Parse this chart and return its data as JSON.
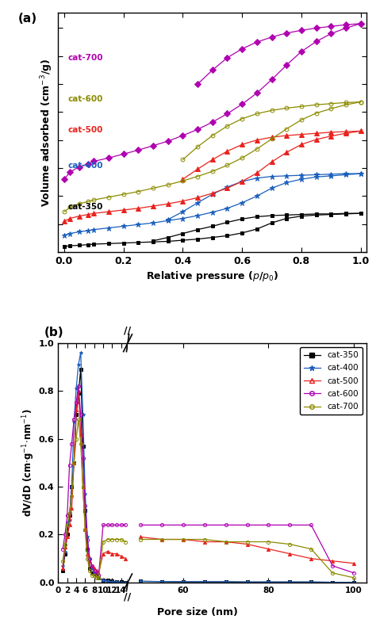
{
  "panel_a": {
    "xlabel": "Relative pressure ($p$/$p_0$)",
    "ylabel": "Volume adsorbed (cm$^{-3}$/g)",
    "xlim": [
      0.0,
      1.0
    ],
    "xticks": [
      0.0,
      0.2,
      0.4,
      0.6,
      0.8,
      1.0
    ],
    "labels": [
      "cat-350",
      "cat-400",
      "cat-500",
      "cat-600",
      "cat-700"
    ],
    "colors": [
      "#000000",
      "#1a5fbd",
      "#e8231e",
      "#8B8B00",
      "#b000b0"
    ],
    "markers": [
      "s",
      "*",
      "^",
      "o",
      "D"
    ],
    "series": {
      "cat350_ads": {
        "x": [
          0.0,
          0.02,
          0.05,
          0.08,
          0.1,
          0.15,
          0.2,
          0.25,
          0.3,
          0.35,
          0.4,
          0.45,
          0.5,
          0.55,
          0.6,
          0.65,
          0.7,
          0.75,
          0.8,
          0.85,
          0.9,
          0.95,
          1.0
        ],
        "y": [
          10,
          11,
          12,
          13,
          14,
          15,
          16,
          17,
          18,
          19,
          21,
          23,
          26,
          29,
          34,
          41,
          52,
          60,
          64,
          66,
          67,
          68,
          69
        ]
      },
      "cat350_des": {
        "x": [
          1.0,
          0.95,
          0.9,
          0.85,
          0.8,
          0.75,
          0.7,
          0.65,
          0.6,
          0.55,
          0.5,
          0.45,
          0.4,
          0.35,
          0.3
        ],
        "y": [
          69,
          69,
          68,
          68,
          67,
          66,
          65,
          63,
          59,
          53,
          46,
          40,
          33,
          26,
          20
        ]
      },
      "cat400_ads": {
        "x": [
          0.0,
          0.02,
          0.05,
          0.08,
          0.1,
          0.15,
          0.2,
          0.25,
          0.3,
          0.35,
          0.4,
          0.45,
          0.5,
          0.55,
          0.6,
          0.65,
          0.7,
          0.75,
          0.8,
          0.85,
          0.9,
          0.95,
          1.0
        ],
        "y": [
          30,
          33,
          36,
          38,
          40,
          43,
          46,
          49,
          52,
          56,
          60,
          65,
          71,
          78,
          88,
          100,
          114,
          124,
          130,
          134,
          136,
          138,
          140
        ]
      },
      "cat400_des": {
        "x": [
          1.0,
          0.95,
          0.9,
          0.85,
          0.8,
          0.75,
          0.7,
          0.65,
          0.6,
          0.55,
          0.5,
          0.45,
          0.4,
          0.35
        ],
        "y": [
          140,
          140,
          139,
          138,
          137,
          136,
          135,
          132,
          126,
          116,
          103,
          88,
          72,
          58
        ]
      },
      "cat500_ads": {
        "x": [
          0.0,
          0.02,
          0.05,
          0.08,
          0.1,
          0.15,
          0.2,
          0.25,
          0.3,
          0.35,
          0.4,
          0.45,
          0.5,
          0.55,
          0.6,
          0.65,
          0.7,
          0.75,
          0.8,
          0.85,
          0.9,
          0.95,
          1.0
        ],
        "y": [
          55,
          60,
          64,
          67,
          69,
          72,
          75,
          78,
          82,
          86,
          91,
          97,
          105,
          114,
          126,
          141,
          161,
          178,
          192,
          201,
          207,
          212,
          216
        ]
      },
      "cat500_des": {
        "x": [
          1.0,
          0.95,
          0.9,
          0.85,
          0.8,
          0.75,
          0.7,
          0.65,
          0.6,
          0.55,
          0.5,
          0.45,
          0.4
        ],
        "y": [
          216,
          215,
          214,
          212,
          210,
          208,
          205,
          200,
          192,
          180,
          165,
          148,
          130
        ]
      },
      "cat600_ads": {
        "x": [
          0.0,
          0.02,
          0.05,
          0.08,
          0.1,
          0.15,
          0.2,
          0.25,
          0.3,
          0.35,
          0.4,
          0.45,
          0.5,
          0.55,
          0.6,
          0.65,
          0.7,
          0.75,
          0.8,
          0.85,
          0.9,
          0.95,
          1.0
        ],
        "y": [
          72,
          80,
          86,
          90,
          93,
          98,
          103,
          108,
          114,
          120,
          127,
          135,
          144,
          155,
          168,
          184,
          202,
          220,
          236,
          248,
          256,
          263,
          268
        ]
      },
      "cat600_des": {
        "x": [
          1.0,
          0.95,
          0.9,
          0.85,
          0.8,
          0.75,
          0.7,
          0.65,
          0.6,
          0.55,
          0.5,
          0.45,
          0.4
        ],
        "y": [
          268,
          267,
          265,
          263,
          260,
          257,
          253,
          247,
          238,
          225,
          208,
          188,
          165
        ]
      },
      "cat700_ads": {
        "x": [
          0.0,
          0.02,
          0.05,
          0.08,
          0.1,
          0.15,
          0.2,
          0.25,
          0.3,
          0.35,
          0.4,
          0.45,
          0.5,
          0.55,
          0.6,
          0.65,
          0.7,
          0.75,
          0.8,
          0.85,
          0.9,
          0.95,
          1.0
        ],
        "y": [
          130,
          143,
          152,
          157,
          162,
          168,
          175,
          182,
          190,
          198,
          208,
          219,
          232,
          247,
          264,
          284,
          308,
          334,
          358,
          376,
          390,
          400,
          408
        ]
      },
      "cat700_des": {
        "x": [
          1.0,
          0.95,
          0.9,
          0.85,
          0.8,
          0.75,
          0.7,
          0.65,
          0.6,
          0.55,
          0.5,
          0.45
        ],
        "y": [
          408,
          406,
          403,
          400,
          396,
          391,
          384,
          375,
          363,
          347,
          325,
          300
        ]
      }
    }
  },
  "panel_b": {
    "xlabel": "Pore size (nm)",
    "ylabel": "dV/dD (cm$\\cdot$g$^{-1}$$\\cdot$nm$^{-1}$)",
    "ylim": [
      0.0,
      1.0
    ],
    "yticks": [
      0.0,
      0.2,
      0.4,
      0.6,
      0.8,
      1.0
    ],
    "labels": [
      "cat-350",
      "cat-400",
      "cat-500",
      "cat-600",
      "cat-700"
    ],
    "colors": [
      "#000000",
      "#1a5fbd",
      "#e8231e",
      "#b000b0",
      "#8B8B00"
    ],
    "markers": [
      "s",
      "*",
      "^",
      "o",
      "o"
    ],
    "mfc_open": [
      false,
      false,
      false,
      true,
      true
    ],
    "series": {
      "cat350_left": {
        "x": [
          1.0,
          1.5,
          2.0,
          2.5,
          3.0,
          3.5,
          4.0,
          4.5,
          5.0,
          5.5,
          6.0,
          6.5,
          7.0,
          7.5,
          8.0,
          8.5,
          9.0,
          10.0,
          11.0,
          12.0,
          13.0,
          14.0,
          15.0
        ],
        "y": [
          0.05,
          0.12,
          0.2,
          0.28,
          0.4,
          0.5,
          0.7,
          0.79,
          0.89,
          0.57,
          0.3,
          0.14,
          0.06,
          0.04,
          0.04,
          0.03,
          0.02,
          0.01,
          0.01,
          0.005,
          0.003,
          0.002,
          0.001
        ]
      },
      "cat350_right": {
        "x": [
          50,
          55,
          60,
          65,
          70,
          75,
          80,
          85,
          90,
          95,
          100
        ],
        "y": [
          0.005,
          0.004,
          0.003,
          0.003,
          0.003,
          0.002,
          0.002,
          0.002,
          0.002,
          0.001,
          0.001
        ]
      },
      "cat400_left": {
        "x": [
          1.0,
          1.5,
          2.0,
          2.5,
          3.0,
          3.5,
          4.0,
          4.5,
          5.0,
          5.5,
          6.0,
          6.5,
          7.0,
          7.5,
          8.0,
          8.5,
          9.0,
          10.0,
          11.0,
          12.0,
          13.0,
          14.0,
          15.0
        ],
        "y": [
          0.07,
          0.13,
          0.25,
          0.26,
          0.4,
          0.67,
          0.81,
          0.91,
          0.96,
          0.7,
          0.37,
          0.19,
          0.1,
          0.06,
          0.04,
          0.03,
          0.02,
          0.01,
          0.005,
          0.003,
          0.002,
          0.001,
          0.001
        ]
      },
      "cat400_right": {
        "x": [
          50,
          55,
          60,
          65,
          70,
          75,
          80,
          85,
          90,
          95,
          100
        ],
        "y": [
          0.005,
          0.004,
          0.003,
          0.003,
          0.003,
          0.002,
          0.002,
          0.002,
          0.002,
          0.001,
          0.001
        ]
      },
      "cat500_left": {
        "x": [
          1.0,
          1.5,
          2.0,
          2.5,
          3.0,
          3.5,
          4.0,
          4.5,
          5.0,
          5.5,
          6.0,
          6.5,
          7.0,
          7.5,
          8.0,
          8.5,
          9.0,
          10.0,
          11.0,
          12.0,
          13.0,
          14.0,
          15.0
        ],
        "y": [
          0.06,
          0.15,
          0.19,
          0.24,
          0.31,
          0.5,
          0.72,
          0.8,
          0.62,
          0.4,
          0.22,
          0.12,
          0.09,
          0.07,
          0.06,
          0.05,
          0.04,
          0.12,
          0.13,
          0.12,
          0.12,
          0.11,
          0.1
        ]
      },
      "cat500_right": {
        "x": [
          50,
          55,
          60,
          65,
          70,
          75,
          80,
          85,
          90,
          95,
          100
        ],
        "y": [
          0.19,
          0.18,
          0.18,
          0.17,
          0.17,
          0.16,
          0.14,
          0.12,
          0.1,
          0.09,
          0.08
        ]
      },
      "cat600_left": {
        "x": [
          1.0,
          1.5,
          2.0,
          2.5,
          3.0,
          3.5,
          4.0,
          4.5,
          5.0,
          5.5,
          6.0,
          6.5,
          7.0,
          7.5,
          8.0,
          8.5,
          9.0,
          10.0,
          11.0,
          12.0,
          13.0,
          14.0,
          15.0
        ],
        "y": [
          0.14,
          0.2,
          0.28,
          0.49,
          0.58,
          0.68,
          0.75,
          0.82,
          0.7,
          0.52,
          0.32,
          0.18,
          0.1,
          0.07,
          0.05,
          0.04,
          0.03,
          0.24,
          0.24,
          0.24,
          0.24,
          0.24,
          0.24
        ]
      },
      "cat600_right": {
        "x": [
          50,
          55,
          60,
          65,
          70,
          75,
          80,
          85,
          90,
          95,
          100
        ],
        "y": [
          0.24,
          0.24,
          0.24,
          0.24,
          0.24,
          0.24,
          0.24,
          0.24,
          0.24,
          0.07,
          0.04
        ]
      },
      "cat700_left": {
        "x": [
          1.0,
          1.5,
          2.0,
          2.5,
          3.0,
          3.5,
          4.0,
          4.5,
          5.0,
          5.5,
          6.0,
          6.5,
          7.0,
          7.5,
          8.0,
          8.5,
          9.0,
          10.0,
          11.0,
          12.0,
          13.0,
          14.0,
          15.0
        ],
        "y": [
          0.09,
          0.16,
          0.24,
          0.29,
          0.36,
          0.5,
          0.6,
          0.68,
          0.58,
          0.4,
          0.22,
          0.1,
          0.05,
          0.03,
          0.03,
          0.02,
          0.02,
          0.17,
          0.18,
          0.18,
          0.18,
          0.18,
          0.17
        ]
      },
      "cat700_right": {
        "x": [
          50,
          55,
          60,
          65,
          70,
          75,
          80,
          85,
          90,
          95,
          100
        ],
        "y": [
          0.18,
          0.18,
          0.18,
          0.18,
          0.17,
          0.17,
          0.17,
          0.16,
          0.14,
          0.04,
          0.02
        ]
      }
    }
  }
}
